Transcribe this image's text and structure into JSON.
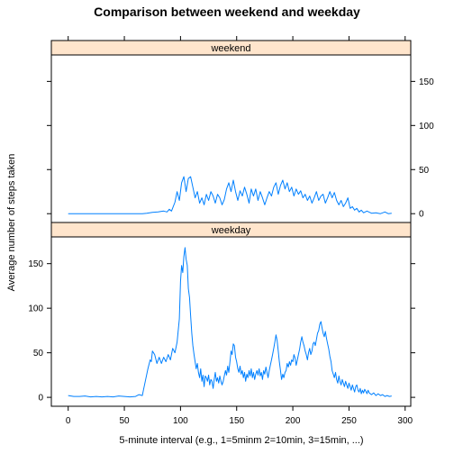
{
  "chart_data": {
    "type": "line",
    "title": "Comparison between weekend and weekday",
    "xlabel": "5-minute interval (e.g., 1=5minm 2=10min, 3=15min, ...)",
    "ylabel": "Average number of steps taken",
    "xlim": [
      -15,
      305
    ],
    "ylim": [
      -10,
      180
    ],
    "x_ticks": [
      0,
      50,
      100,
      150,
      200,
      250,
      300
    ],
    "y_ticks": [
      0,
      50,
      100,
      150
    ],
    "line_color": "#0080ff",
    "strip_color": "#ffe5cc",
    "panels": [
      {
        "name": "weekend",
        "points": [
          [
            0,
            0
          ],
          [
            20,
            0
          ],
          [
            40,
            0
          ],
          [
            60,
            0
          ],
          [
            66,
            0
          ],
          [
            70,
            0.5
          ],
          [
            75,
            1.5
          ],
          [
            80,
            2
          ],
          [
            85,
            3
          ],
          [
            88,
            2
          ],
          [
            90,
            5
          ],
          [
            92,
            3
          ],
          [
            95,
            13
          ],
          [
            97,
            25
          ],
          [
            99,
            15
          ],
          [
            101,
            35
          ],
          [
            103,
            42
          ],
          [
            105,
            25
          ],
          [
            107,
            40
          ],
          [
            109,
            42
          ],
          [
            111,
            30
          ],
          [
            113,
            18
          ],
          [
            115,
            25
          ],
          [
            117,
            12
          ],
          [
            119,
            18
          ],
          [
            121,
            10
          ],
          [
            123,
            22
          ],
          [
            125,
            15
          ],
          [
            127,
            25
          ],
          [
            129,
            20
          ],
          [
            131,
            12
          ],
          [
            133,
            22
          ],
          [
            135,
            18
          ],
          [
            137,
            10
          ],
          [
            139,
            16
          ],
          [
            141,
            28
          ],
          [
            143,
            35
          ],
          [
            145,
            25
          ],
          [
            147,
            38
          ],
          [
            149,
            25
          ],
          [
            151,
            15
          ],
          [
            153,
            26
          ],
          [
            155,
            20
          ],
          [
            157,
            30
          ],
          [
            159,
            22
          ],
          [
            161,
            12
          ],
          [
            163,
            28
          ],
          [
            165,
            20
          ],
          [
            167,
            28
          ],
          [
            169,
            15
          ],
          [
            171,
            25
          ],
          [
            173,
            18
          ],
          [
            175,
            10
          ],
          [
            177,
            18
          ],
          [
            179,
            25
          ],
          [
            181,
            20
          ],
          [
            183,
            30
          ],
          [
            185,
            35
          ],
          [
            187,
            22
          ],
          [
            189,
            32
          ],
          [
            191,
            38
          ],
          [
            193,
            28
          ],
          [
            195,
            35
          ],
          [
            197,
            25
          ],
          [
            199,
            30
          ],
          [
            201,
            20
          ],
          [
            203,
            28
          ],
          [
            205,
            22
          ],
          [
            207,
            26
          ],
          [
            209,
            18
          ],
          [
            211,
            22
          ],
          [
            213,
            15
          ],
          [
            215,
            20
          ],
          [
            217,
            12
          ],
          [
            219,
            18
          ],
          [
            221,
            25
          ],
          [
            223,
            15
          ],
          [
            225,
            20
          ],
          [
            227,
            22
          ],
          [
            229,
            12
          ],
          [
            231,
            18
          ],
          [
            233,
            25
          ],
          [
            235,
            18
          ],
          [
            237,
            24
          ],
          [
            239,
            15
          ],
          [
            241,
            10
          ],
          [
            243,
            15
          ],
          [
            245,
            8
          ],
          [
            247,
            12
          ],
          [
            249,
            18
          ],
          [
            251,
            6
          ],
          [
            253,
            8
          ],
          [
            255,
            4
          ],
          [
            257,
            6
          ],
          [
            259,
            2
          ],
          [
            261,
            4
          ],
          [
            263,
            1
          ],
          [
            266,
            3
          ],
          [
            270,
            0.5
          ],
          [
            274,
            1
          ],
          [
            278,
            0
          ],
          [
            282,
            2
          ],
          [
            285,
            0
          ],
          [
            288,
            0.5
          ]
        ]
      },
      {
        "name": "weekday",
        "points": [
          [
            0,
            2
          ],
          [
            5,
            1
          ],
          [
            10,
            1
          ],
          [
            15,
            1.5
          ],
          [
            20,
            0.5
          ],
          [
            25,
            1
          ],
          [
            30,
            0.5
          ],
          [
            35,
            1
          ],
          [
            40,
            0.5
          ],
          [
            45,
            1.5
          ],
          [
            50,
            1
          ],
          [
            55,
            0.5
          ],
          [
            60,
            1
          ],
          [
            63,
            3
          ],
          [
            66,
            2
          ],
          [
            67,
            8
          ],
          [
            69,
            20
          ],
          [
            71,
            32
          ],
          [
            73,
            42
          ],
          [
            74,
            40
          ],
          [
            75,
            52
          ],
          [
            77,
            48
          ],
          [
            79,
            38
          ],
          [
            81,
            45
          ],
          [
            83,
            38
          ],
          [
            85,
            45
          ],
          [
            87,
            40
          ],
          [
            89,
            48
          ],
          [
            91,
            42
          ],
          [
            93,
            55
          ],
          [
            95,
            50
          ],
          [
            97,
            62
          ],
          [
            99,
            88
          ],
          [
            100,
            130
          ],
          [
            101,
            148
          ],
          [
            102,
            140
          ],
          [
            103,
            158
          ],
          [
            104,
            168
          ],
          [
            105,
            155
          ],
          [
            106,
            148
          ],
          [
            107,
            122
          ],
          [
            108,
            112
          ],
          [
            109,
            92
          ],
          [
            110,
            72
          ],
          [
            111,
            58
          ],
          [
            112,
            48
          ],
          [
            113,
            40
          ],
          [
            114,
            32
          ],
          [
            115,
            38
          ],
          [
            116,
            28
          ],
          [
            117,
            22
          ],
          [
            118,
            32
          ],
          [
            119,
            18
          ],
          [
            120,
            25
          ],
          [
            121,
            12
          ],
          [
            122,
            24
          ],
          [
            123,
            22
          ],
          [
            124,
            18
          ],
          [
            125,
            25
          ],
          [
            126,
            14
          ],
          [
            127,
            20
          ],
          [
            128,
            18
          ],
          [
            129,
            10
          ],
          [
            130,
            20
          ],
          [
            131,
            28
          ],
          [
            132,
            18
          ],
          [
            133,
            22
          ],
          [
            134,
            16
          ],
          [
            135,
            24
          ],
          [
            136,
            18
          ],
          [
            137,
            14
          ],
          [
            138,
            18
          ],
          [
            139,
            24
          ],
          [
            140,
            30
          ],
          [
            141,
            25
          ],
          [
            142,
            35
          ],
          [
            143,
            28
          ],
          [
            144,
            40
          ],
          [
            145,
            52
          ],
          [
            146,
            48
          ],
          [
            147,
            60
          ],
          [
            148,
            58
          ],
          [
            149,
            45
          ],
          [
            150,
            40
          ],
          [
            151,
            32
          ],
          [
            152,
            28
          ],
          [
            153,
            35
          ],
          [
            154,
            26
          ],
          [
            155,
            30
          ],
          [
            156,
            22
          ],
          [
            157,
            28
          ],
          [
            158,
            18
          ],
          [
            159,
            26
          ],
          [
            160,
            22
          ],
          [
            161,
            30
          ],
          [
            162,
            24
          ],
          [
            163,
            32
          ],
          [
            164,
            22
          ],
          [
            165,
            28
          ],
          [
            166,
            20
          ],
          [
            167,
            26
          ],
          [
            168,
            30
          ],
          [
            169,
            25
          ],
          [
            170,
            32
          ],
          [
            171,
            24
          ],
          [
            172,
            28
          ],
          [
            173,
            20
          ],
          [
            174,
            30
          ],
          [
            175,
            26
          ],
          [
            176,
            34
          ],
          [
            177,
            28
          ],
          [
            178,
            22
          ],
          [
            179,
            30
          ],
          [
            180,
            36
          ],
          [
            181,
            42
          ],
          [
            182,
            48
          ],
          [
            183,
            55
          ],
          [
            184,
            62
          ],
          [
            185,
            70
          ],
          [
            186,
            64
          ],
          [
            187,
            52
          ],
          [
            188,
            40
          ],
          [
            189,
            30
          ],
          [
            190,
            20
          ],
          [
            191,
            26
          ],
          [
            192,
            22
          ],
          [
            193,
            28
          ],
          [
            194,
            30
          ],
          [
            195,
            38
          ],
          [
            196,
            34
          ],
          [
            197,
            40
          ],
          [
            198,
            36
          ],
          [
            199,
            42
          ],
          [
            200,
            40
          ],
          [
            201,
            48
          ],
          [
            202,
            44
          ],
          [
            203,
            36
          ],
          [
            204,
            42
          ],
          [
            205,
            48
          ],
          [
            206,
            54
          ],
          [
            207,
            62
          ],
          [
            208,
            68
          ],
          [
            209,
            62
          ],
          [
            210,
            58
          ],
          [
            211,
            52
          ],
          [
            212,
            48
          ],
          [
            213,
            42
          ],
          [
            214,
            50
          ],
          [
            215,
            55
          ],
          [
            216,
            48
          ],
          [
            217,
            52
          ],
          [
            218,
            60
          ],
          [
            219,
            62
          ],
          [
            220,
            58
          ],
          [
            221,
            65
          ],
          [
            222,
            72
          ],
          [
            223,
            75
          ],
          [
            224,
            82
          ],
          [
            225,
            85
          ],
          [
            226,
            78
          ],
          [
            227,
            72
          ],
          [
            228,
            68
          ],
          [
            229,
            74
          ],
          [
            230,
            66
          ],
          [
            231,
            60
          ],
          [
            232,
            54
          ],
          [
            233,
            46
          ],
          [
            234,
            40
          ],
          [
            235,
            30
          ],
          [
            236,
            26
          ],
          [
            237,
            22
          ],
          [
            238,
            28
          ],
          [
            239,
            20
          ],
          [
            240,
            16
          ],
          [
            241,
            24
          ],
          [
            242,
            18
          ],
          [
            243,
            14
          ],
          [
            244,
            20
          ],
          [
            245,
            16
          ],
          [
            246,
            12
          ],
          [
            247,
            18
          ],
          [
            248,
            14
          ],
          [
            249,
            10
          ],
          [
            250,
            16
          ],
          [
            251,
            12
          ],
          [
            252,
            8
          ],
          [
            253,
            14
          ],
          [
            254,
            10
          ],
          [
            255,
            6
          ],
          [
            256,
            12
          ],
          [
            257,
            14
          ],
          [
            258,
            8
          ],
          [
            259,
            6
          ],
          [
            260,
            10
          ],
          [
            261,
            4
          ],
          [
            262,
            8
          ],
          [
            263,
            5
          ],
          [
            264,
            9
          ],
          [
            265,
            7
          ],
          [
            266,
            4
          ],
          [
            267,
            8
          ],
          [
            268,
            5
          ],
          [
            270,
            3
          ],
          [
            272,
            5
          ],
          [
            274,
            2
          ],
          [
            276,
            4
          ],
          [
            278,
            2
          ],
          [
            280,
            3
          ],
          [
            282,
            1
          ],
          [
            284,
            2
          ],
          [
            286,
            1
          ],
          [
            288,
            1.5
          ]
        ]
      }
    ]
  }
}
